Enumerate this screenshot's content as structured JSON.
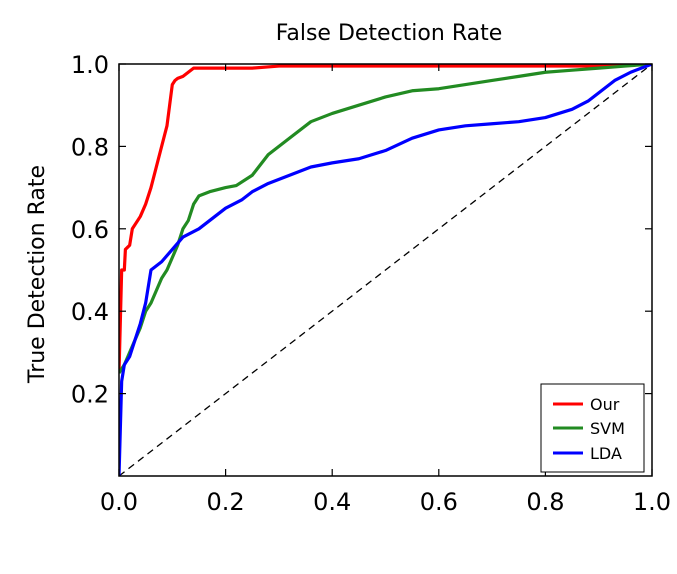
{
  "chart_data": {
    "type": "line",
    "title": "",
    "xlabel": "False Detection Rate",
    "ylabel": "True Detection Rate",
    "xlim": [
      0.0,
      1.0
    ],
    "ylim": [
      0.0,
      1.0
    ],
    "x_ticks": [
      0.0,
      0.2,
      0.4,
      0.6,
      0.8,
      1.0
    ],
    "x_tick_labels": [
      "0.0",
      "0.2",
      "0.4",
      "0.6",
      "0.8",
      "1.0"
    ],
    "y_ticks": [
      0.2,
      0.4,
      0.6,
      0.8,
      1.0
    ],
    "y_tick_labels": [
      "0.2",
      "0.4",
      "0.6",
      "0.8",
      "1.0"
    ],
    "grid": false,
    "legend_position": "bottom-right",
    "series": [
      {
        "name": "Our",
        "color": "#ff0000",
        "x": [
          0.0,
          0.005,
          0.01,
          0.012,
          0.02,
          0.025,
          0.035,
          0.04,
          0.05,
          0.06,
          0.07,
          0.08,
          0.09,
          0.095,
          0.1,
          0.105,
          0.11,
          0.12,
          0.13,
          0.14,
          0.2,
          0.25,
          0.3,
          0.4,
          0.5,
          0.6,
          0.7,
          0.8,
          0.9,
          0.95,
          1.0
        ],
        "y": [
          0.25,
          0.5,
          0.5,
          0.55,
          0.56,
          0.6,
          0.62,
          0.63,
          0.66,
          0.7,
          0.75,
          0.8,
          0.85,
          0.9,
          0.95,
          0.96,
          0.965,
          0.97,
          0.98,
          0.99,
          0.99,
          0.99,
          0.995,
          0.995,
          0.995,
          0.995,
          0.995,
          0.995,
          0.995,
          1.0,
          1.0
        ]
      },
      {
        "name": "SVM",
        "color": "#228b22",
        "x": [
          0.0,
          0.01,
          0.02,
          0.03,
          0.04,
          0.05,
          0.06,
          0.07,
          0.08,
          0.09,
          0.1,
          0.11,
          0.12,
          0.13,
          0.14,
          0.15,
          0.17,
          0.2,
          0.22,
          0.25,
          0.28,
          0.32,
          0.36,
          0.4,
          0.45,
          0.5,
          0.55,
          0.6,
          0.65,
          0.7,
          0.75,
          0.8,
          0.85,
          0.9,
          0.95,
          1.0
        ],
        "y": [
          0.25,
          0.27,
          0.3,
          0.33,
          0.36,
          0.4,
          0.42,
          0.45,
          0.48,
          0.5,
          0.53,
          0.56,
          0.6,
          0.62,
          0.66,
          0.68,
          0.69,
          0.7,
          0.705,
          0.73,
          0.78,
          0.82,
          0.86,
          0.88,
          0.9,
          0.92,
          0.935,
          0.94,
          0.95,
          0.96,
          0.97,
          0.98,
          0.985,
          0.99,
          0.995,
          1.0
        ]
      },
      {
        "name": "LDA",
        "color": "#0000ff",
        "x": [
          0.0,
          0.005,
          0.01,
          0.02,
          0.03,
          0.04,
          0.05,
          0.06,
          0.07,
          0.08,
          0.1,
          0.12,
          0.15,
          0.18,
          0.2,
          0.23,
          0.25,
          0.28,
          0.32,
          0.36,
          0.4,
          0.45,
          0.5,
          0.55,
          0.6,
          0.65,
          0.7,
          0.75,
          0.8,
          0.85,
          0.88,
          0.9,
          0.93,
          0.96,
          1.0
        ],
        "y": [
          0.0,
          0.23,
          0.27,
          0.29,
          0.33,
          0.37,
          0.42,
          0.5,
          0.51,
          0.52,
          0.55,
          0.58,
          0.6,
          0.63,
          0.65,
          0.67,
          0.69,
          0.71,
          0.73,
          0.75,
          0.76,
          0.77,
          0.79,
          0.82,
          0.84,
          0.85,
          0.855,
          0.86,
          0.87,
          0.89,
          0.91,
          0.93,
          0.96,
          0.98,
          1.0
        ]
      }
    ],
    "reference_line": {
      "x": [
        0.0,
        1.0
      ],
      "y": [
        0.0,
        1.0
      ],
      "color": "#000000",
      "style": "dashed"
    }
  }
}
